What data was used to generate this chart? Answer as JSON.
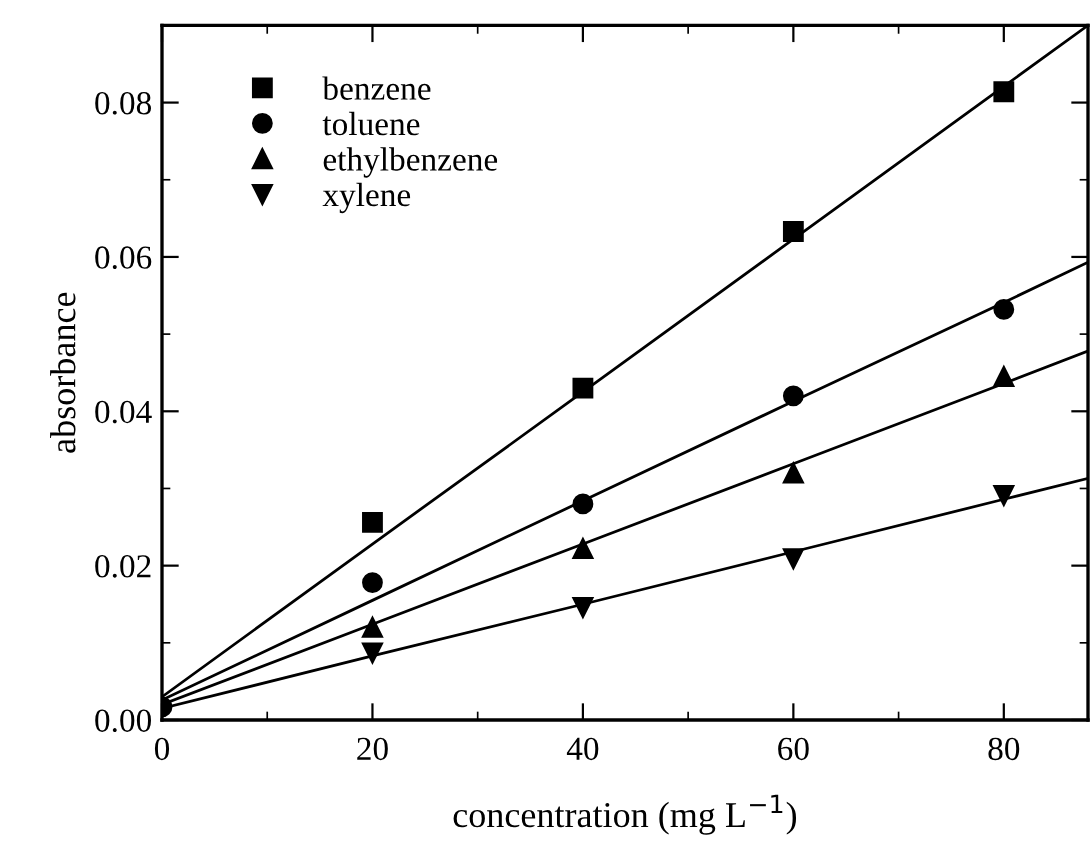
{
  "chart_data": {
    "type": "scatter",
    "xlabel": "concentration (mg L$^{−1}$)",
    "ylabel": "absorbance",
    "x": [
      0,
      20,
      40,
      60,
      80,
      88
    ],
    "xlim": [
      0,
      88
    ],
    "xticks": [
      0,
      20,
      40,
      60,
      80
    ],
    "ylim": [
      0,
      0.09
    ],
    "yticks": [
      {
        "value": 0,
        "label": "0.00"
      },
      {
        "value": 0.02,
        "label": "0.02"
      },
      {
        "value": 0.04,
        "label": "0.04"
      },
      {
        "value": 0.06,
        "label": "0.06"
      },
      {
        "value": 0.08,
        "label": "0.08"
      }
    ],
    "grid": false,
    "legend": "top left",
    "series": [
      {
        "name": "benzene",
        "color": "#000000",
        "marker": "square",
        "values": [
          null,
          0.0256,
          0.043,
          0.0633,
          0.0814,
          null
        ]
      },
      {
        "name": "toluene",
        "color": "#000000",
        "marker": "circle",
        "values": [
          0.0017,
          0.0178,
          0.028,
          0.042,
          0.0532,
          null
        ]
      },
      {
        "name": "ethylbenzene",
        "color": "#000000",
        "marker": "triangle",
        "values": [
          null,
          0.012,
          0.0222,
          0.032,
          0.0445,
          null
        ]
      },
      {
        "name": "xylene",
        "color": "#000000",
        "marker": "triangle_down",
        "values": [
          null,
          0.0087,
          0.0146,
          0.0209,
          0.0291,
          null
        ]
      },
      {
        "type": "line",
        "color": "#000000",
        "line_style": "solid",
        "values": [
          0.003,
          0.0228,
          0.0425,
          0.0623,
          0.0821,
          0.09
        ]
      },
      {
        "type": "line",
        "color": "#000000",
        "line_style": "solid",
        "values": [
          0.0026,
          0.0155,
          0.0284,
          0.0413,
          0.0541,
          0.0593
        ]
      },
      {
        "type": "line",
        "color": "#000000",
        "line_style": "solid",
        "values": [
          0.002,
          0.0124,
          0.0228,
          0.0332,
          0.0436,
          0.0478
        ]
      },
      {
        "type": "line",
        "color": "#000000",
        "line_style": "solid",
        "values": [
          0.0015,
          0.0083,
          0.015,
          0.0218,
          0.0286,
          0.0313
        ]
      }
    ]
  }
}
